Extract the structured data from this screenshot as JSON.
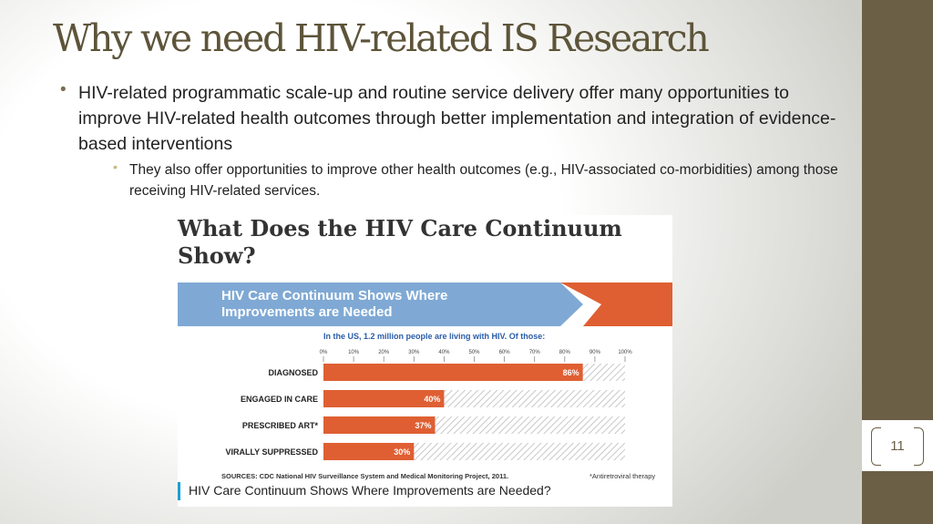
{
  "slide": {
    "title": "Why we need HIV-related IS Research",
    "bullet_main": "HIV-related programmatic scale-up and routine service delivery offer many opportunities to improve HIV-related health outcomes through better implementation and integration of evidence-based interventions",
    "bullet_sub": "They also offer opportunities to improve other health outcomes (e.g., HIV-associated co-morbidities) among those receiving HIV-related services.",
    "slide_number": "11"
  },
  "figure": {
    "title": "What Does the HIV Care Continuum Show?",
    "banner": "HIV Care Continuum Shows Where Improvements are Needed",
    "sources": "SOURCES: CDC National HIV Surveillance System and Medical Monitoring Project, 2011.",
    "footnote": "*Antiretroviral therapy",
    "caption": "HIV Care Continuum Shows Where Improvements are Needed?"
  },
  "colors": {
    "banner_blue": "#7fa9d4",
    "banner_orange": "#df5f33",
    "bar": "#df5f33",
    "subtitle_blue": "#2a5da8",
    "accent_olive": "#6b5f45"
  },
  "chart_data": {
    "type": "bar",
    "orientation": "horizontal",
    "subtitle": "In the US, 1.2 million people are living with HIV.  Of those:",
    "x_ticks": [
      "0%",
      "10%",
      "20%",
      "30%",
      "40%",
      "50%",
      "60%",
      "70%",
      "80%",
      "90%",
      "100%"
    ],
    "xlim": [
      0,
      100
    ],
    "categories": [
      "DIAGNOSED",
      "ENGAGED IN CARE",
      "PRESCRIBED ART*",
      "VIRALLY SUPPRESSED"
    ],
    "values": [
      86,
      40,
      37,
      30
    ],
    "value_labels": [
      "86%",
      "40%",
      "37%",
      "30%"
    ]
  }
}
